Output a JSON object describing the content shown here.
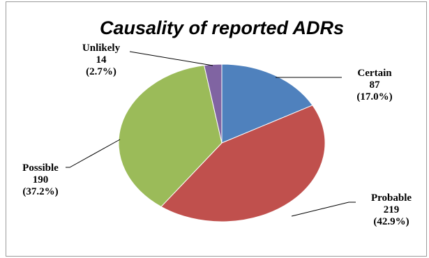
{
  "chart_data": {
    "type": "pie",
    "title": "Causality of reported ADRs",
    "slices": [
      {
        "name": "Certain",
        "value": 87,
        "percent": "(17.0%)",
        "color": "#4f81bd"
      },
      {
        "name": "Probable",
        "value": 219,
        "percent": "(42.9%)",
        "color": "#c0504d"
      },
      {
        "name": "Possible",
        "value": 190,
        "percent": "(37.2%)",
        "color": "#9bbb59"
      },
      {
        "name": "Unlikely",
        "value": 14,
        "percent": "(2.7%)",
        "color": "#8064a2"
      }
    ],
    "legend": "none",
    "labels": "outside-with-leader-lines"
  }
}
